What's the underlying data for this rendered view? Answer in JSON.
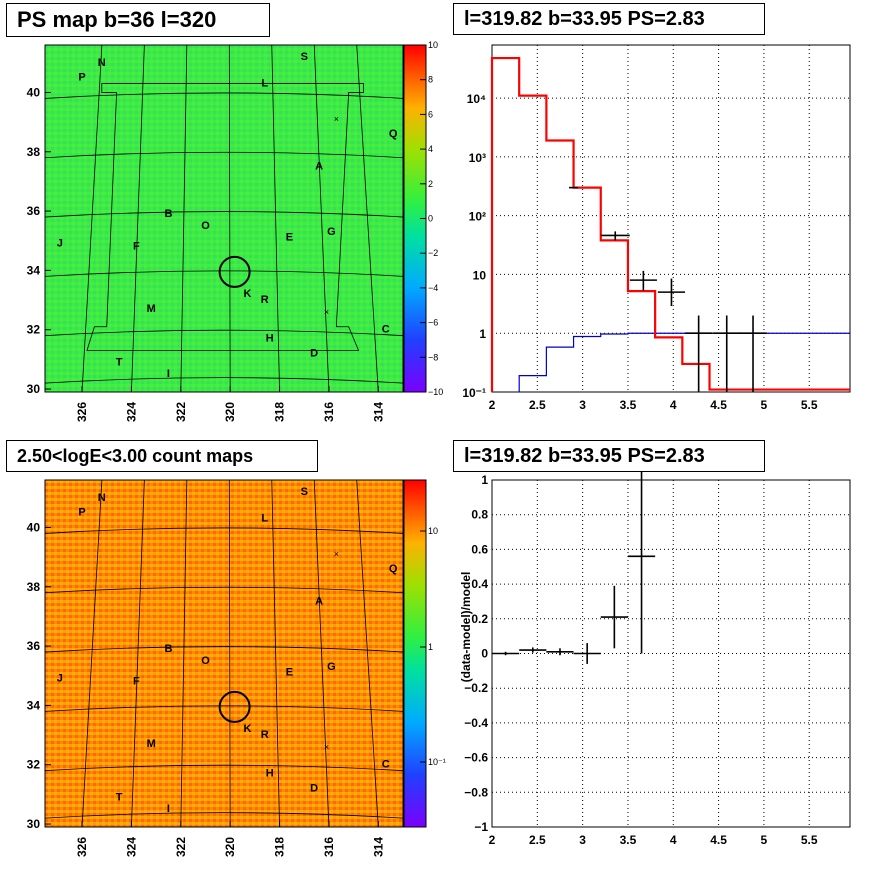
{
  "titles": {
    "top_left": "PS map b=36 l=320",
    "top_right": "l=319.82 b=33.95 PS=2.83",
    "bottom_left": "2.50<logE<3.00 count maps",
    "bottom_right": "l=319.82 b=33.95 PS=2.83"
  },
  "colors": {
    "hist_data": "#000000",
    "hist_model": "#ff0000",
    "hist_bg": "#0000cc",
    "circle": "#000000"
  },
  "chart_data": [
    {
      "type": "heatmap",
      "title": "PS map b=36 l=320",
      "x_ticks": [
        "326",
        "324",
        "322",
        "320",
        "318",
        "316",
        "314"
      ],
      "y_ticks": [
        "30",
        "32",
        "34",
        "36",
        "38",
        "40"
      ],
      "xlim": [
        327.5,
        313.0
      ],
      "ylim": [
        29.9,
        41.6
      ],
      "z_ticks": [
        "10",
        "8",
        "6",
        "4",
        "2",
        "0",
        "−2",
        "−4",
        "−6",
        "−8",
        "−10"
      ],
      "zlim": [
        -10,
        10
      ],
      "sources": [
        {
          "label": "N",
          "l": 325.2,
          "b": 40.9
        },
        {
          "label": "P",
          "l": 326.0,
          "b": 40.4
        },
        {
          "label": "S",
          "l": 317.0,
          "b": 41.1
        },
        {
          "label": "L",
          "l": 318.6,
          "b": 40.2
        },
        {
          "label": "Q",
          "l": 313.4,
          "b": 38.5
        },
        {
          "label": "A",
          "l": 316.4,
          "b": 37.4
        },
        {
          "label": "B",
          "l": 322.5,
          "b": 35.8
        },
        {
          "label": "O",
          "l": 321.0,
          "b": 35.4
        },
        {
          "label": "E",
          "l": 317.6,
          "b": 35.0
        },
        {
          "label": "G",
          "l": 315.9,
          "b": 35.2
        },
        {
          "label": "J",
          "l": 326.9,
          "b": 34.8
        },
        {
          "label": "F",
          "l": 323.8,
          "b": 34.7
        },
        {
          "label": "K",
          "l": 319.3,
          "b": 33.1
        },
        {
          "label": "R",
          "l": 318.6,
          "b": 32.9
        },
        {
          "label": "M",
          "l": 323.2,
          "b": 32.6
        },
        {
          "label": "C",
          "l": 313.7,
          "b": 31.9
        },
        {
          "label": "H",
          "l": 318.4,
          "b": 31.6
        },
        {
          "label": "D",
          "l": 316.6,
          "b": 31.1
        },
        {
          "label": "T",
          "l": 324.5,
          "b": 30.8
        },
        {
          "label": "I",
          "l": 322.5,
          "b": 30.4
        }
      ],
      "target": {
        "l": 319.82,
        "b": 33.95
      }
    },
    {
      "type": "line",
      "title": "l=319.82 b=33.95 PS=2.83",
      "x_ticks": [
        "2",
        "2.5",
        "3",
        "3.5",
        "4",
        "4.5",
        "5",
        "5.5"
      ],
      "y_ticks": [
        "10⁻¹",
        "1",
        "10",
        "10²",
        "10³",
        "10⁴"
      ],
      "xlim": [
        2.0,
        5.95
      ],
      "ylim": [
        0.1,
        80000
      ],
      "yscale": "log",
      "model_steps": {
        "edges": [
          2.0,
          2.3,
          2.6,
          2.9,
          3.2,
          3.5,
          3.8,
          4.1,
          4.4,
          5.95
        ],
        "values": [
          48000,
          11000,
          1900,
          300,
          38,
          5.2,
          0.85,
          0.3,
          0.11
        ]
      },
      "background_steps": {
        "edges": [
          2.3,
          2.6,
          2.9,
          3.2,
          3.5,
          5.95
        ],
        "values": [
          0.19,
          0.58,
          0.88,
          0.97,
          1.0
        ]
      },
      "data_points": [
        {
          "x": 2.9,
          "y": 300,
          "xerr": 0.05,
          "ylo": 300,
          "yhi": 300
        },
        {
          "x": 3.36,
          "y": 46,
          "xerr": 0.16,
          "ylo": 38,
          "yhi": 54
        },
        {
          "x": 3.67,
          "y": 8,
          "xerr": 0.15,
          "ylo": 5.3,
          "yhi": 11.5
        },
        {
          "x": 3.98,
          "y": 5,
          "xerr": 0.15,
          "ylo": 2.9,
          "yhi": 8.5
        },
        {
          "x": 4.28,
          "y": 1,
          "xerr": 0.15,
          "ylo": 0.1,
          "yhi": 2.0
        },
        {
          "x": 4.59,
          "y": 1,
          "xerr": 0.15,
          "ylo": 0.1,
          "yhi": 2.0
        },
        {
          "x": 4.88,
          "y": 1,
          "xerr": 0.15,
          "ylo": 0.1,
          "yhi": 2.0
        }
      ]
    },
    {
      "type": "heatmap",
      "title": "2.50<logE<3.00 count maps",
      "x_ticks": [
        "326",
        "324",
        "322",
        "320",
        "318",
        "316",
        "314"
      ],
      "y_ticks": [
        "30",
        "32",
        "34",
        "36",
        "38",
        "40"
      ],
      "z_ticks": [
        "10",
        "1",
        "10⁻¹"
      ],
      "zscale": "log"
    },
    {
      "type": "scatter",
      "title": "l=319.82 b=33.95 PS=2.83",
      "ylabel": "(data-model)/model",
      "x_ticks": [
        "2",
        "2.5",
        "3",
        "3.5",
        "4",
        "4.5",
        "5",
        "5.5"
      ],
      "y_ticks": [
        "1",
        "0.8",
        "0.6",
        "0.4",
        "0.2",
        "0",
        "−0.2",
        "−0.4",
        "−0.6",
        "−0.8",
        "−1"
      ],
      "xlim": [
        2.0,
        5.95
      ],
      "ylim": [
        -1,
        1
      ],
      "points": [
        {
          "x": 2.15,
          "y": 0.0,
          "xerr": 0.15,
          "yerr": 0.01
        },
        {
          "x": 2.45,
          "y": 0.02,
          "xerr": 0.15,
          "yerr": 0.015
        },
        {
          "x": 2.75,
          "y": 0.01,
          "xerr": 0.15,
          "yerr": 0.02
        },
        {
          "x": 3.05,
          "y": 0.0,
          "xerr": 0.15,
          "yerr": 0.06
        },
        {
          "x": 3.35,
          "y": 0.21,
          "xerr": 0.15,
          "yerr": 0.18
        },
        {
          "x": 3.65,
          "y": 0.56,
          "xerr": 0.15,
          "yerr": 0.56
        }
      ]
    }
  ]
}
